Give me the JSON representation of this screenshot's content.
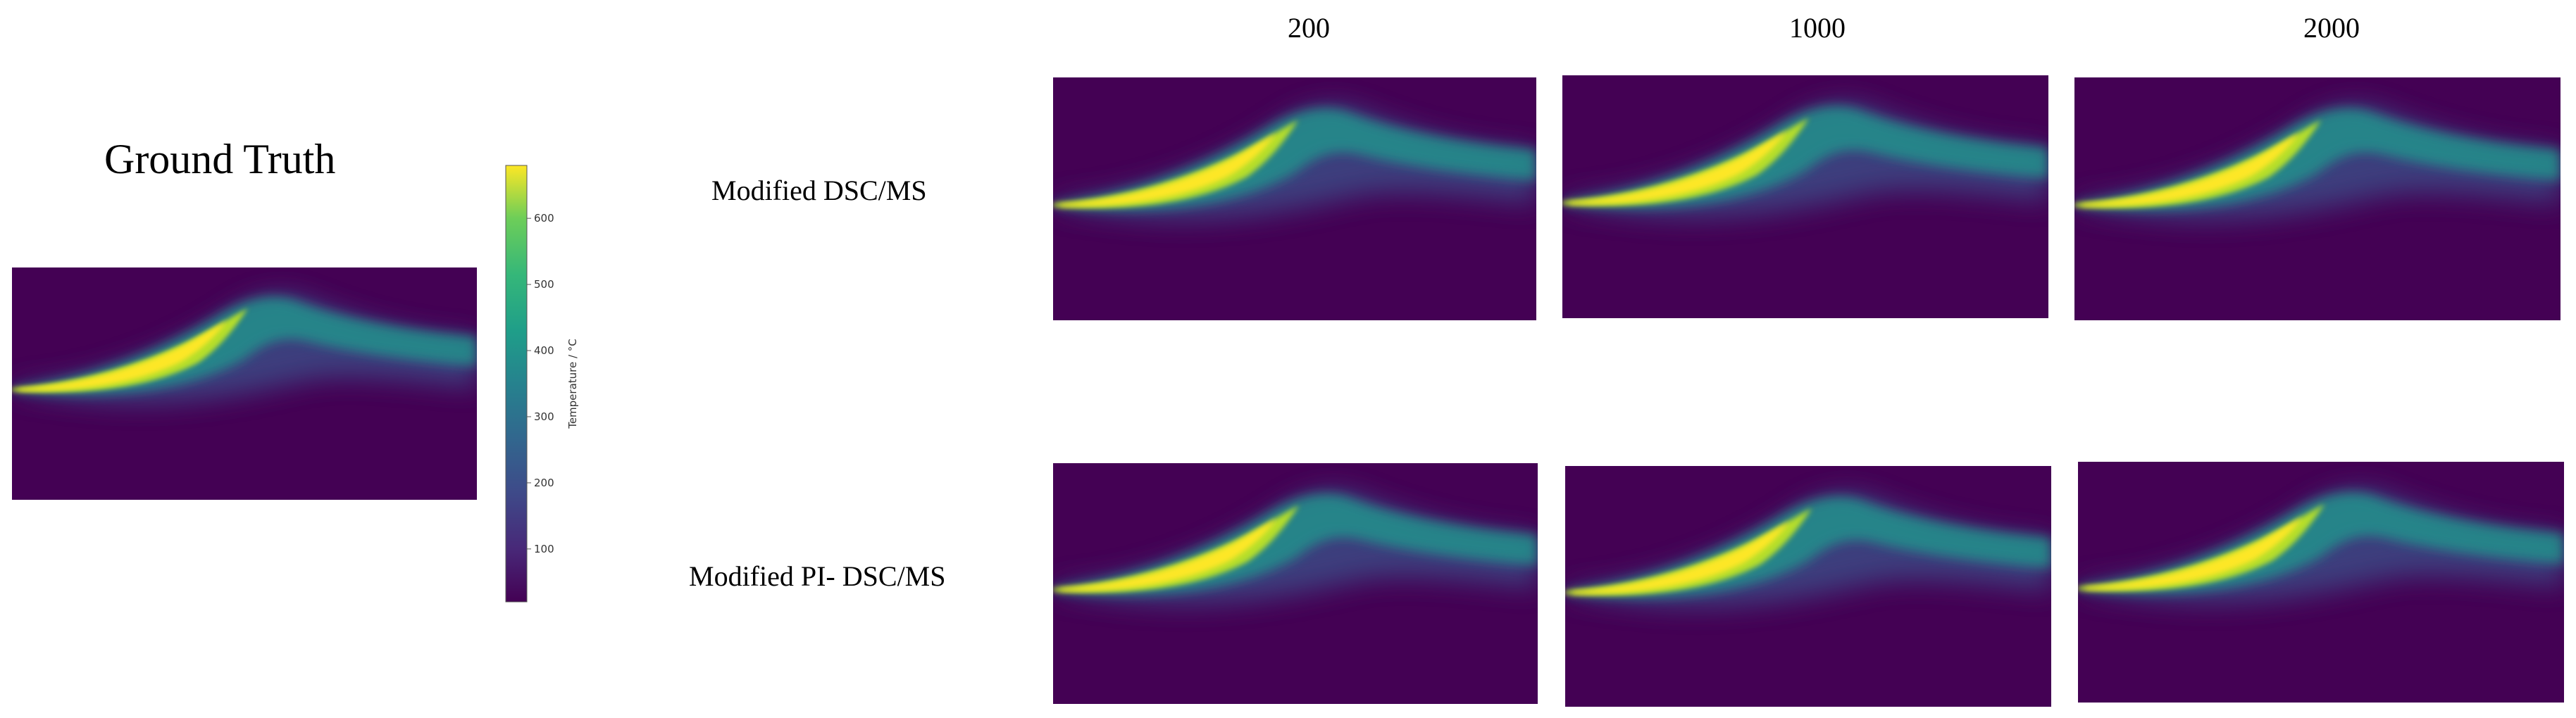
{
  "ground_truth": {
    "title": "Ground Truth"
  },
  "colorbar": {
    "label": "Temperature / °C",
    "ticks": [
      "100",
      "200",
      "300",
      "400",
      "500",
      "600"
    ],
    "tick_values": [
      100,
      200,
      300,
      400,
      500,
      600
    ],
    "range": [
      20,
      680
    ],
    "colormap": "viridis"
  },
  "columns": [
    "200",
    "1000",
    "2000"
  ],
  "rows": [
    {
      "label": "Modified  DSC/MS"
    },
    {
      "label": "Modified  PI- DSC/MS"
    }
  ],
  "colors": {
    "background": "#440154",
    "core": "#fde725",
    "mid": "#21918c",
    "low": "#3b528b"
  }
}
